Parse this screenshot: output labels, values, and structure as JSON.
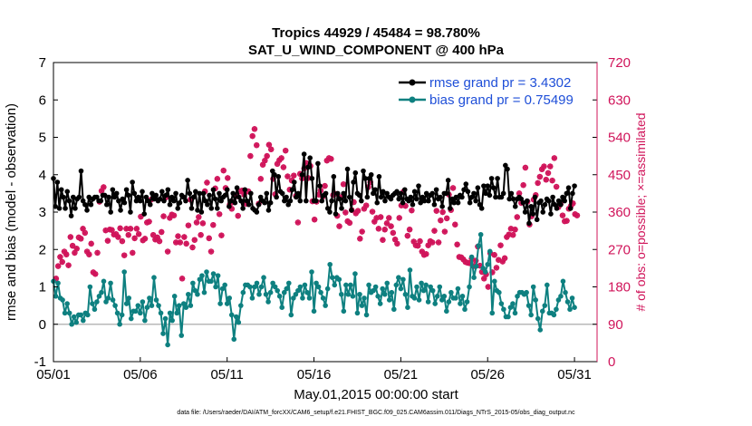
{
  "colors": {
    "rmse": "#000000",
    "bias": "#0e8080",
    "obs": "#d0145a",
    "zero_line": "#b8b8b8",
    "legend_text": "#1f4fd8"
  },
  "chart_data": {
    "type": "line",
    "title": "Tropics 44929 / 45484 = 98.780%",
    "subtitle": "SAT_U_WIND_COMPONENT @ 400 hPa",
    "xlabel": "May.01,2015 00:00:00 start",
    "ylabel": "rmse and bias (model - observation)",
    "ylabel_right": "# of obs: o=possible; ×=assimilated",
    "footer": "data file: /Users/raeder/DAI/ATM_forcXX/CAM6_setup/f.e21.FHIST_BGC.f09_025.CAM6assim.011/Diags_NTrS_2015-05/obs_diag_output.nc",
    "xlim": [
      1,
      32.3
    ],
    "ylim": [
      -1,
      7
    ],
    "ylim_right": [
      0,
      720
    ],
    "x_ticks": [
      1,
      6,
      11,
      16,
      21,
      26,
      31
    ],
    "x_tick_labels": [
      "05/01",
      "05/06",
      "05/11",
      "05/16",
      "05/21",
      "05/26",
      "05/31"
    ],
    "y_ticks": [
      "-1",
      "0",
      "1",
      "2",
      "3",
      "4",
      "5",
      "6",
      "7"
    ],
    "y_ticks_right": [
      "0",
      "90",
      "180",
      "270",
      "360",
      "450",
      "540",
      "630",
      "720"
    ],
    "legend": [
      {
        "label": "rmse grand pr = 3.4302",
        "series": "rmse"
      },
      {
        "label": "bias grand pr = 0.75499",
        "series": "bias"
      }
    ],
    "series": [
      {
        "name": "rmse",
        "values": [
          3.9,
          3.15,
          3.8,
          3.1,
          3.6,
          3.4,
          3.1,
          3.55,
          3.3,
          2.9,
          3.4,
          3.1,
          3.35,
          3.4,
          4.1,
          3.3,
          3.2,
          3.05,
          3.4,
          3.2,
          3.35,
          3.4,
          3.4,
          3.3,
          3.3,
          3.45,
          3.45,
          3.2,
          3.4,
          3.0,
          3.6,
          3.4,
          3.5,
          3.3,
          3.05,
          3.35,
          3.25,
          3.6,
          3.45,
          3.0,
          3.8,
          3.5,
          3.3,
          3.4,
          3.3,
          3.55,
          2.95,
          3.4,
          3.3,
          3.2,
          3.5,
          3.35,
          3.45,
          3.3,
          3.35,
          3.55,
          3.3,
          3.45,
          3.6,
          3.2,
          3.4,
          3.3,
          3.5,
          3.1,
          3.25,
          3.45,
          3.4,
          3.3,
          3.85,
          3.5,
          3.1,
          3.4,
          3.55,
          3.05,
          3.5,
          3.0,
          3.5,
          3.3,
          3.2,
          3.45,
          3.1,
          3.6,
          3.35,
          3.1,
          3.5,
          3.3,
          3.4,
          3.45,
          3.6,
          3.15,
          3.3,
          3.5,
          3.25,
          3.65,
          3.4,
          3.3,
          3.1,
          3.6,
          3.3,
          3.2,
          3.5,
          3.1,
          3.05,
          3.0,
          3.2,
          3.4,
          3.3,
          3.25,
          3.5,
          3.05,
          3.25,
          4.1,
          4.0,
          3.4,
          3.95,
          3.55,
          3.5,
          3.3,
          3.4,
          3.2,
          3.3,
          3.6,
          3.8,
          3.4,
          3.5,
          3.3,
          4.0,
          4.55,
          3.3,
          4.2,
          4.45,
          3.9,
          3.3,
          3.3,
          4.3,
          3.7,
          3.3,
          3.45,
          3.5,
          3.1,
          3.0,
          3.3,
          3.95,
          2.95,
          3.5,
          3.35,
          3.1,
          3.5,
          3.3,
          4.15,
          3.4,
          3.05,
          3.8,
          4.05,
          3.5,
          3.45,
          3.3,
          4.1,
          3.9,
          3.4,
          3.9,
          4.0,
          3.5,
          3.6,
          3.25,
          3.95,
          3.4,
          3.55,
          3.3,
          3.5,
          3.4,
          3.35,
          3.45,
          3.5,
          3.55,
          3.35,
          3.5,
          3.25,
          3.6,
          3.35,
          3.3,
          3.4,
          3.2,
          3.55,
          3.35,
          3.7,
          3.25,
          3.4,
          3.3,
          3.5,
          3.3,
          3.45,
          3.5,
          3.2,
          3.6,
          3.35,
          3.4,
          3.15,
          3.5,
          3.5,
          3.85,
          3.1,
          3.35,
          3.25,
          3.4,
          3.25,
          3.45,
          3.4,
          3.6,
          3.75,
          3.55,
          3.25,
          3.4,
          3.5,
          3.3,
          3.65,
          3.2,
          3.1,
          3.7,
          3.5,
          3.7,
          3.45,
          3.9,
          3.65,
          3.4,
          3.9,
          3.4,
          3.4,
          3.5,
          4.25,
          4.15,
          3.35,
          3.5,
          3.35,
          3.15,
          3.35,
          3.4,
          3.35,
          3.25,
          3.0,
          3.3,
          2.7,
          3.15,
          2.95,
          3.4,
          2.8,
          3.25,
          3.3,
          3.0,
          3.2,
          3.35,
          3.3,
          2.95,
          3.4,
          3.2,
          3.1,
          3.3,
          3.2,
          3.4,
          3.3,
          3.5,
          3.65,
          3.1,
          3.5,
          3.7
        ]
      },
      {
        "name": "bias",
        "values": [
          1.15,
          0.75,
          1.1,
          0.7,
          0.65,
          0.3,
          0.55,
          0.3,
          0.0,
          0.2,
          0.05,
          0.25,
          0.25,
          0.1,
          0.3,
          0.25,
          1.0,
          0.55,
          0.4,
          0.6,
          0.75,
          0.85,
          1.15,
          0.6,
          0.7,
          1.1,
          0.65,
          0.5,
          0.3,
          0.0,
          0.25,
          1.4,
          0.55,
          0.7,
          0.15,
          0.35,
          0.35,
          0.5,
          0.3,
          0.6,
          0.1,
          0.45,
          0.7,
          0.5,
          1.25,
          0.65,
          0.5,
          0.3,
          -0.25,
          0.15,
          -0.55,
          0.3,
          0.1,
          0.75,
          0.3,
          0.5,
          -0.3,
          0.55,
          0.45,
          0.8,
          0.5,
          1.1,
          0.9,
          0.8,
          1.2,
          1.3,
          0.85,
          1.4,
          1.15,
          1.15,
          1.35,
          1.0,
          1.3,
          0.55,
          0.95,
          1.05,
          0.55,
          0.7,
          0.25,
          -0.4,
          0.2,
          0.05,
          0.5,
          0.85,
          1.05,
          1.05,
          1.0,
          0.7,
          1.0,
          1.1,
          0.8,
          1.0,
          1.25,
          0.8,
          0.6,
          0.85,
          1.1,
          1.0,
          0.9,
          0.75,
          0.45,
          0.85,
          0.95,
          1.1,
          0.25,
          0.7,
          0.8,
          0.9,
          1.0,
          0.7,
          1.05,
          0.85,
          0.7,
          1.4,
          0.35,
          1.1,
          1.0,
          0.85,
          0.7,
          0.5,
          0.95,
          1.6,
          1.25,
          1.05,
          1.25,
          1.2,
          0.8,
          0.35,
          1.05,
          0.8,
          1.05,
          0.75,
          1.35,
          0.3,
          0.8,
          0.5,
          0.7,
          0.25,
          1.05,
          0.85,
          0.9,
          1.0,
          0.75,
          0.55,
          0.95,
          0.8,
          1.1,
          0.65,
          0.85,
          0.4,
          1.05,
          1.25,
          0.95,
          1.2,
          0.8,
          0.45,
          1.45,
          0.75,
          0.7,
          1.0,
          0.65,
          1.1,
          0.9,
          1.05,
          0.6,
          1.0,
          0.9,
          0.55,
          0.75,
          1.0,
          0.65,
          0.75,
          0.35,
          0.6,
          0.85,
          0.7,
          0.7,
          0.95,
          0.55,
          0.75,
          0.4,
          0.6,
          1.0,
          1.8,
          1.25,
          1.55,
          2.1,
          2.4,
          1.5,
          1.4,
          1.6,
          1.95,
          0.3,
          1.15,
          0.9,
          0.85,
          0.55,
          0.4,
          0.2,
          0.2,
          0.45,
          0.55,
          0.3,
          0.75,
          0.85,
          0.85,
          0.8,
          0.85,
          0.5,
          0.25,
          1.0,
          0.65,
          0.15,
          -0.15,
          0.35,
          0.5,
          1.05,
          0.3,
          0.3,
          0.25,
          0.4,
          0.65,
          0.75,
          1.15,
          0.85,
          0.6,
          0.4,
          0.7,
          0.45
        ]
      },
      {
        "name": "obs_possible",
        "values": [
          200,
          230,
          252,
          240,
          265,
          258,
          232,
          300,
          279,
          262,
          272,
          299,
          296,
          320,
          310,
          265,
          258,
          284,
          215,
          211,
          262,
          385,
          411,
          420,
          316,
          291,
          318,
          317,
          306,
          307,
          300,
          321,
          290,
          256,
          320,
          305,
          320,
          262,
          297,
          320,
          307,
          349,
          292,
          296,
          335,
          337,
          390,
          305,
          294,
          299,
          290,
          312,
          350,
          395,
          265,
          346,
          354,
          352,
          287,
          302,
          287,
          200,
          300,
          284,
          328,
          390,
          275,
          293,
          335,
          348,
          305,
          333,
          410,
          431,
          297,
          265,
          329,
          417,
          440,
          355,
          304,
          460,
          418,
          442,
          378,
          368,
          384,
          398,
          351,
          410,
          412,
          402,
          380,
          410,
          495,
          543,
          560,
          521,
          380,
          440,
          474,
          484,
          495,
          522,
          511,
          440,
          403,
          476,
          485,
          490,
          468,
          508,
          446,
          414,
          436,
          448,
          399,
          335,
          452,
          441,
          465,
          478,
          442,
          471,
          386,
          342,
          385,
          402,
          412,
          397,
          423,
          484,
          490,
          488,
          401,
          404,
          351,
          326,
          396,
          427,
          359,
          338,
          334,
          365,
          384,
          357,
          363,
          296,
          313,
          368,
          376,
          420,
          432,
          361,
          337,
          346,
          320,
          348,
          293,
          318,
          333,
          346,
          326,
          310,
          294,
          284,
          346,
          376,
          409,
          375,
          303,
          318,
          364,
          289,
          280,
          279,
          290,
          265,
          257,
          259,
          280,
          290,
          287,
          315,
          363,
          287,
          340,
          360,
          313,
          345,
          402,
          365,
          418,
          330,
          282,
          252,
          251,
          246,
          240,
          238,
          237,
          248,
          230,
          243,
          277,
          231,
          216,
          200,
          210,
          180,
          261,
          215,
          257,
          226,
          245,
          280,
          241,
          249,
          300,
          306,
          320,
          305,
          318,
          348,
          405,
          382,
          425,
          467,
          385,
          330,
          350,
          390,
          401,
          430,
          445,
          463,
          470,
          438,
          454,
          470,
          436,
          490,
          421,
          372,
          379,
          352,
          338,
          339,
          368,
          375,
          381,
          355,
          352
        ]
      },
      {
        "name": "obs_assimilated",
        "values": [
          200,
          230,
          252,
          240,
          265,
          258,
          232,
          300,
          279,
          262,
          272,
          299,
          296,
          320,
          310,
          265,
          258,
          284,
          215,
          211,
          262,
          385,
          411,
          420,
          316,
          291,
          318,
          317,
          306,
          307,
          300,
          321,
          290,
          256,
          320,
          305,
          320,
          262,
          297,
          320,
          307,
          349,
          292,
          296,
          335,
          337,
          390,
          305,
          294,
          299,
          290,
          312,
          350,
          395,
          265,
          346,
          354,
          352,
          287,
          302,
          287,
          200,
          300,
          284,
          328,
          390,
          275,
          293,
          335,
          348,
          305,
          333,
          410,
          431,
          297,
          265,
          329,
          417,
          440,
          355,
          304,
          460,
          418,
          442,
          378,
          368,
          384,
          398,
          351,
          410,
          412,
          402,
          380,
          410,
          495,
          543,
          560,
          521,
          380,
          440,
          474,
          484,
          495,
          522,
          511,
          440,
          403,
          476,
          485,
          490,
          468,
          508,
          446,
          414,
          436,
          448,
          399,
          335,
          452,
          441,
          465,
          478,
          442,
          471,
          386,
          342,
          385,
          402,
          412,
          397,
          423,
          484,
          490,
          488,
          401,
          404,
          351,
          326,
          396,
          427,
          359,
          338,
          334,
          365,
          384,
          357,
          363,
          296,
          313,
          368,
          376,
          420,
          432,
          361,
          337,
          346,
          320,
          348,
          293,
          318,
          333,
          346,
          326,
          310,
          294,
          284,
          346,
          376,
          409,
          375,
          303,
          318,
          364,
          289,
          280,
          279,
          290,
          265,
          257,
          259,
          280,
          290,
          287,
          315,
          363,
          287,
          340,
          360,
          313,
          345,
          402,
          365,
          418,
          330,
          282,
          252,
          251,
          246,
          240,
          238,
          237,
          248,
          230,
          243,
          277,
          231,
          216,
          200,
          210,
          180,
          261,
          215,
          257,
          226,
          245,
          280,
          241,
          249,
          300,
          306,
          320,
          305,
          318,
          348,
          405,
          382,
          425,
          467,
          385,
          330,
          350,
          390,
          401,
          430,
          445,
          463,
          470,
          438,
          454,
          470,
          436,
          490,
          421,
          372,
          379,
          352,
          338,
          339,
          368,
          375,
          381,
          355,
          352
        ]
      }
    ]
  }
}
